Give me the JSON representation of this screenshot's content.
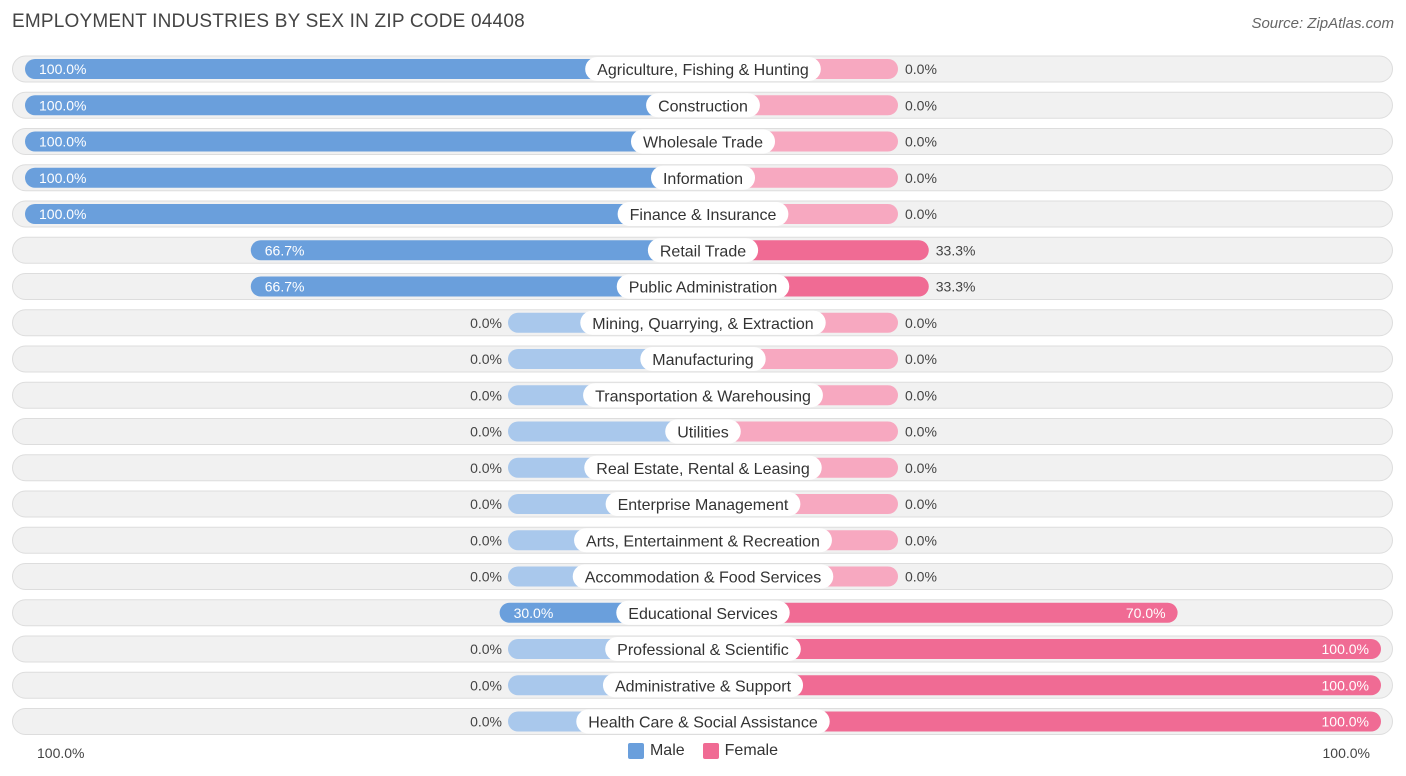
{
  "title": "EMPLOYMENT INDUSTRIES BY SEX IN ZIP CODE 04408",
  "source": "Source: ZipAtlas.com",
  "axis": {
    "left_label": "100.0%",
    "right_label": "100.0%"
  },
  "colors": {
    "male": "#6a9fdc",
    "male_light": "#a9c8ec",
    "female": "#f06b94",
    "female_light": "#f7a8c0"
  },
  "legend": [
    {
      "name": "Male",
      "color": "#6a9fdc"
    },
    {
      "name": "Female",
      "color": "#f06b94"
    }
  ],
  "chart_data": {
    "type": "bar",
    "orientation": "horizontal-diverging",
    "title": "EMPLOYMENT INDUSTRIES BY SEX IN ZIP CODE 04408",
    "xlim": [
      -100,
      100
    ],
    "categories": [
      "Agriculture, Fishing & Hunting",
      "Construction",
      "Wholesale Trade",
      "Information",
      "Finance & Insurance",
      "Retail Trade",
      "Public Administration",
      "Mining, Quarrying, & Extraction",
      "Manufacturing",
      "Transportation & Warehousing",
      "Utilities",
      "Real Estate, Rental & Leasing",
      "Enterprise Management",
      "Arts, Entertainment & Recreation",
      "Accommodation & Food Services",
      "Educational Services",
      "Professional & Scientific",
      "Administrative & Support",
      "Health Care & Social Assistance"
    ],
    "series": [
      {
        "name": "Male",
        "values": [
          100,
          100,
          100,
          100,
          100,
          66.7,
          66.7,
          0,
          0,
          0,
          0,
          0,
          0,
          0,
          0,
          30,
          0,
          0,
          0
        ],
        "labels": [
          "100.0%",
          "100.0%",
          "100.0%",
          "100.0%",
          "100.0%",
          "66.7%",
          "66.7%",
          "0.0%",
          "0.0%",
          "0.0%",
          "0.0%",
          "0.0%",
          "0.0%",
          "0.0%",
          "0.0%",
          "30.0%",
          "0.0%",
          "0.0%",
          "0.0%"
        ]
      },
      {
        "name": "Female",
        "values": [
          0,
          0,
          0,
          0,
          0,
          33.3,
          33.3,
          0,
          0,
          0,
          0,
          0,
          0,
          0,
          0,
          70,
          100,
          100,
          100
        ],
        "labels": [
          "0.0%",
          "0.0%",
          "0.0%",
          "0.0%",
          "0.0%",
          "33.3%",
          "33.3%",
          "0.0%",
          "0.0%",
          "0.0%",
          "0.0%",
          "0.0%",
          "0.0%",
          "0.0%",
          "0.0%",
          "70.0%",
          "100.0%",
          "100.0%",
          "100.0%"
        ]
      }
    ],
    "legend_position": "bottom"
  }
}
